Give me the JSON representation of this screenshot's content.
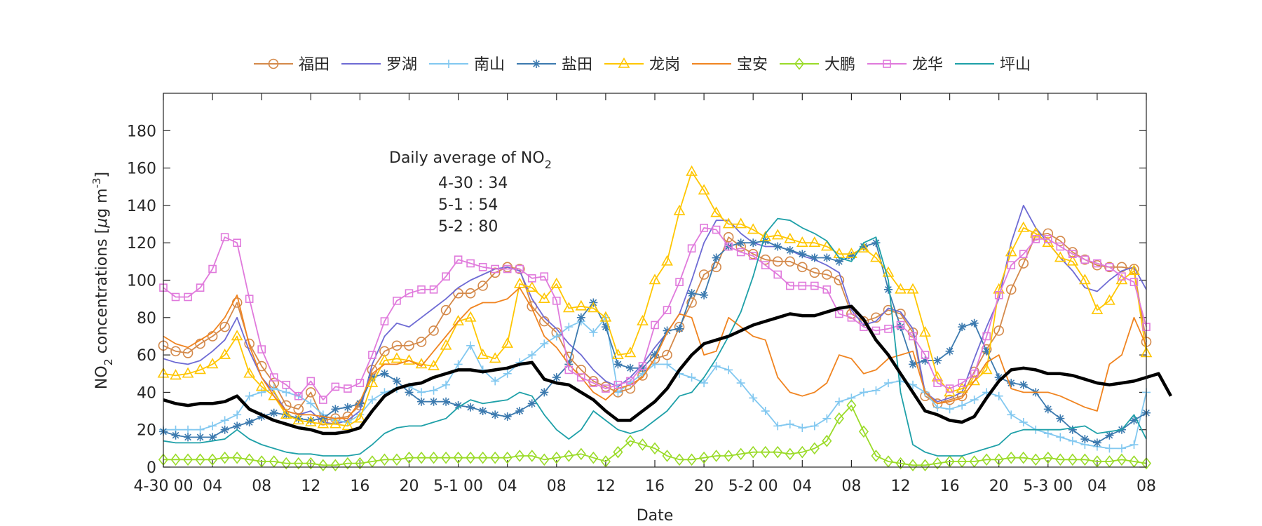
{
  "chart_data": {
    "type": "line",
    "xlabel": "Date",
    "ylabel": {
      "prefix": "NO",
      "sub": "2",
      "mid": " concentrations [",
      "mu": "μ",
      "unit": "g m",
      "sup": "-3",
      "end": "]"
    },
    "ylim": [
      0,
      200
    ],
    "yticks": [
      0,
      20,
      40,
      60,
      80,
      100,
      120,
      140,
      160,
      180
    ],
    "xlim": [
      0,
      80
    ],
    "xticks": [
      {
        "x": 0,
        "label": "4-30 00"
      },
      {
        "x": 4,
        "label": "04"
      },
      {
        "x": 8,
        "label": "08"
      },
      {
        "x": 12,
        "label": "12"
      },
      {
        "x": 16,
        "label": "16"
      },
      {
        "x": 20,
        "label": "20"
      },
      {
        "x": 24,
        "label": "5-1 00"
      },
      {
        "x": 28,
        "label": "04"
      },
      {
        "x": 32,
        "label": "08"
      },
      {
        "x": 36,
        "label": "12"
      },
      {
        "x": 40,
        "label": "16"
      },
      {
        "x": 44,
        "label": "20"
      },
      {
        "x": 48,
        "label": "5-2 00"
      },
      {
        "x": 52,
        "label": "04"
      },
      {
        "x": 56,
        "label": "08"
      },
      {
        "x": 60,
        "label": "12"
      },
      {
        "x": 64,
        "label": "16"
      },
      {
        "x": 68,
        "label": "20"
      },
      {
        "x": 72,
        "label": "5-3 00"
      },
      {
        "x": 76,
        "label": "04"
      },
      {
        "x": 80,
        "label": "08"
      }
    ],
    "annotation": {
      "title": "Daily average of NO",
      "title_sub": "2",
      "lines": [
        "4-30 : 34",
        "5-1 : 54",
        "5-2 : 80"
      ]
    },
    "series": [
      {
        "name": "福田",
        "color": "#D4894A",
        "marker": "circle",
        "values": [
          65,
          62,
          61,
          66,
          70,
          75,
          88,
          66,
          54,
          45,
          33,
          31,
          40,
          25,
          26,
          27,
          33,
          52,
          62,
          65,
          65,
          67,
          73,
          84,
          93,
          93,
          97,
          104,
          107,
          106,
          86,
          78,
          72,
          59,
          52,
          46,
          43,
          40,
          42,
          49,
          58,
          60,
          75,
          88,
          103,
          107,
          123,
          118,
          114,
          111,
          110,
          110,
          107,
          104,
          103,
          100,
          82,
          78,
          80,
          84,
          82,
          72,
          38,
          34,
          36,
          38,
          51,
          63,
          73,
          95,
          109,
          124,
          125,
          121,
          115,
          111,
          108,
          107,
          107,
          106,
          67
        ]
      },
      {
        "name": "罗湖",
        "color": "#6E6BD4",
        "marker": "none",
        "values": [
          58,
          56,
          55,
          57,
          62,
          68,
          80,
          62,
          48,
          40,
          30,
          28,
          30,
          24,
          23,
          25,
          30,
          55,
          70,
          77,
          75,
          80,
          85,
          90,
          96,
          100,
          103,
          106,
          107,
          105,
          90,
          80,
          74,
          66,
          60,
          52,
          46,
          43,
          48,
          55,
          64,
          72,
          82,
          100,
          120,
          132,
          132,
          125,
          120,
          118,
          118,
          116,
          113,
          111,
          108,
          104,
          84,
          76,
          78,
          85,
          83,
          74,
          40,
          35,
          37,
          40,
          58,
          75,
          90,
          120,
          140,
          128,
          120,
          112,
          105,
          96,
          94,
          100,
          105,
          107,
          95
        ]
      },
      {
        "name": "南山",
        "color": "#82C8F0",
        "marker": "plus",
        "values": [
          20,
          20,
          20,
          20,
          22,
          25,
          28,
          38,
          40,
          42,
          40,
          38,
          34,
          28,
          25,
          24,
          28,
          36,
          40,
          42,
          43,
          40,
          41,
          44,
          55,
          65,
          52,
          46,
          50,
          56,
          60,
          66,
          70,
          75,
          78,
          72,
          80,
          40,
          45,
          50,
          55,
          55,
          50,
          48,
          45,
          54,
          52,
          45,
          37,
          30,
          22,
          23,
          21,
          22,
          26,
          35,
          37,
          40,
          41,
          45,
          46,
          44,
          40,
          32,
          31,
          33,
          36,
          40,
          38,
          28,
          24,
          20,
          18,
          16,
          14,
          12,
          11,
          10,
          10,
          12,
          40
        ]
      },
      {
        "name": "盐田",
        "color": "#3C7AAF",
        "marker": "star",
        "values": [
          19,
          17,
          16,
          16,
          16,
          20,
          22,
          24,
          27,
          29,
          28,
          26,
          25,
          26,
          31,
          32,
          34,
          48,
          50,
          46,
          40,
          35,
          35,
          35,
          33,
          32,
          30,
          28,
          27,
          30,
          34,
          40,
          48,
          55,
          80,
          88,
          75,
          55,
          53,
          53,
          60,
          73,
          74,
          93,
          92,
          112,
          118,
          120,
          120,
          121,
          118,
          116,
          114,
          112,
          112,
          110,
          113,
          118,
          120,
          95,
          75,
          55,
          57,
          57,
          62,
          75,
          77,
          62,
          48,
          45,
          44,
          40,
          31,
          26,
          20,
          15,
          13,
          17,
          20,
          25,
          29
        ]
      },
      {
        "name": "龙岗",
        "color": "#FFC600",
        "marker": "triangle",
        "values": [
          50,
          49,
          50,
          52,
          55,
          60,
          70,
          50,
          43,
          38,
          28,
          25,
          24,
          23,
          23,
          22,
          26,
          45,
          57,
          58,
          57,
          55,
          54,
          65,
          78,
          80,
          60,
          58,
          66,
          98,
          96,
          90,
          98,
          85,
          86,
          85,
          80,
          60,
          61,
          78,
          100,
          110,
          137,
          158,
          148,
          136,
          130,
          130,
          127,
          123,
          124,
          122,
          120,
          120,
          118,
          114,
          114,
          117,
          112,
          104,
          95,
          95,
          72,
          48,
          40,
          42,
          46,
          52,
          95,
          115,
          128,
          125,
          120,
          112,
          110,
          100,
          84,
          89,
          100,
          105,
          61
        ]
      },
      {
        "name": "宝安",
        "color": "#F08420",
        "marker": "none",
        "values": [
          70,
          66,
          64,
          68,
          72,
          80,
          92,
          65,
          48,
          38,
          30,
          28,
          28,
          27,
          26,
          26,
          35,
          50,
          55,
          55,
          57,
          54,
          62,
          70,
          78,
          85,
          88,
          88,
          90,
          96,
          85,
          70,
          64,
          55,
          48,
          40,
          36,
          42,
          44,
          48,
          58,
          72,
          82,
          80,
          60,
          62,
          80,
          75,
          70,
          68,
          48,
          40,
          38,
          40,
          45,
          60,
          58,
          50,
          52,
          58,
          60,
          62,
          40,
          34,
          35,
          37,
          46,
          56,
          60,
          42,
          40,
          40,
          40,
          38,
          35,
          32,
          30,
          55,
          60,
          80,
          65
        ]
      },
      {
        "name": "大鹏",
        "color": "#9ADB28",
        "marker": "diamond",
        "values": [
          4,
          4,
          4,
          4,
          4,
          5,
          5,
          4,
          3,
          3,
          2,
          2,
          2,
          1,
          1,
          2,
          2,
          3,
          4,
          4,
          5,
          5,
          5,
          5,
          5,
          5,
          5,
          5,
          5,
          6,
          6,
          4,
          5,
          6,
          7,
          5,
          3,
          8,
          14,
          12,
          10,
          6,
          4,
          4,
          5,
          6,
          6,
          7,
          8,
          8,
          8,
          7,
          8,
          10,
          14,
          26,
          33,
          19,
          6,
          3,
          2,
          1,
          1,
          2,
          3,
          3,
          3,
          4,
          4,
          5,
          5,
          4,
          5,
          4,
          4,
          4,
          3,
          3,
          4,
          3,
          2
        ]
      },
      {
        "name": "龙华",
        "color": "#E07ADC",
        "marker": "square",
        "values": [
          96,
          91,
          91,
          96,
          106,
          123,
          120,
          90,
          63,
          48,
          44,
          38,
          46,
          36,
          43,
          42,
          45,
          60,
          78,
          89,
          93,
          95,
          95,
          102,
          111,
          109,
          107,
          106,
          106,
          106,
          101,
          102,
          89,
          52,
          48,
          45,
          42,
          44,
          46,
          54,
          76,
          84,
          99,
          117,
          128,
          127,
          118,
          115,
          113,
          108,
          103,
          97,
          97,
          97,
          95,
          82,
          80,
          75,
          73,
          74,
          76,
          70,
          60,
          45,
          42,
          45,
          50,
          70,
          92,
          108,
          114,
          122,
          122,
          118,
          114,
          111,
          109,
          107,
          102,
          99,
          75
        ]
      },
      {
        "name": "坪山",
        "color": "#1EA0A8",
        "marker": "none",
        "values": [
          14,
          13,
          13,
          13,
          14,
          15,
          20,
          15,
          12,
          10,
          8,
          7,
          7,
          6,
          6,
          6,
          7,
          12,
          18,
          21,
          22,
          22,
          24,
          26,
          32,
          36,
          34,
          35,
          36,
          40,
          38,
          28,
          20,
          15,
          20,
          30,
          25,
          20,
          18,
          20,
          25,
          30,
          38,
          40,
          48,
          58,
          70,
          83,
          102,
          125,
          133,
          132,
          128,
          125,
          121,
          112,
          110,
          120,
          123,
          100,
          40,
          12,
          8,
          6,
          6,
          6,
          8,
          10,
          12,
          18,
          20,
          20,
          20,
          20,
          21,
          22,
          18,
          19,
          20,
          28,
          15
        ]
      },
      {
        "name": "mean",
        "color": "#000000",
        "marker": "none",
        "width": 4.5,
        "legend": false,
        "values": [
          36,
          34,
          33,
          34,
          34,
          35,
          38,
          31,
          28,
          25,
          23,
          21,
          20,
          18,
          18,
          19,
          21,
          30,
          38,
          42,
          44,
          45,
          48,
          50,
          52,
          52,
          51,
          52,
          53,
          55,
          56,
          47,
          45,
          44,
          40,
          36,
          30,
          25,
          25,
          30,
          35,
          42,
          52,
          60,
          66,
          68,
          70,
          73,
          76,
          78,
          80,
          82,
          81,
          81,
          83,
          85,
          86,
          79,
          68,
          60,
          50,
          40,
          30,
          28,
          25,
          24,
          27,
          37,
          46,
          52,
          53,
          52,
          50,
          50,
          49,
          47,
          45,
          44,
          45,
          46,
          48,
          50,
          38
        ]
      }
    ]
  }
}
